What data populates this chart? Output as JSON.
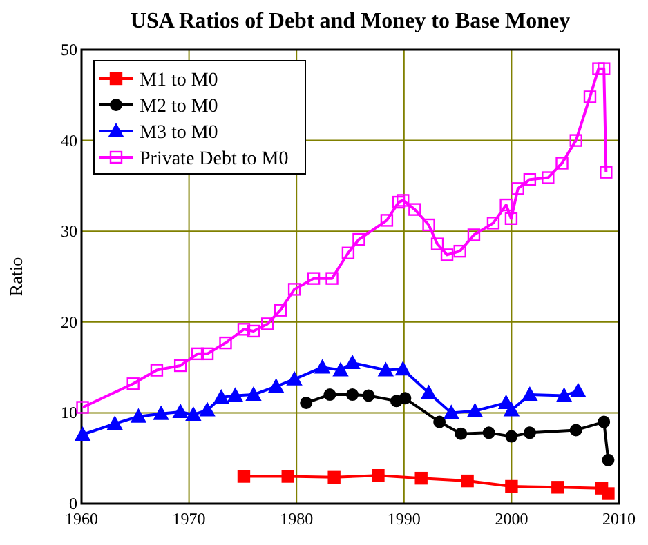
{
  "chart_data": {
    "type": "line",
    "title": "USA Ratios of Debt and Money to Base Money",
    "ylabel": "Ratio",
    "xlim": [
      1960,
      2010
    ],
    "xticks": [
      1960,
      1970,
      1980,
      1990,
      2000,
      2010
    ],
    "ylim": [
      0,
      50
    ],
    "yticks": [
      0,
      10,
      20,
      30,
      40,
      50
    ],
    "grid": true,
    "legend": "top left",
    "series": [
      {
        "name": "M1 to M0",
        "color": "#ff0000",
        "marker": "square",
        "x": [
          1975.1,
          1979.2,
          1983.5,
          1987.6,
          1991.6,
          1995.9,
          2000.0,
          2004.3,
          2008.4,
          2009.0
        ],
        "values": [
          3.0,
          3.0,
          2.9,
          3.1,
          2.8,
          2.5,
          1.9,
          1.8,
          1.7,
          1.1
        ]
      },
      {
        "name": "M2 to M0",
        "color": "#000000",
        "marker": "circle",
        "x": [
          1980.9,
          1983.1,
          1985.2,
          1986.7,
          1989.3,
          1990.1,
          1993.3,
          1995.3,
          1997.9,
          2000.0,
          2001.7,
          2006.0,
          2008.6,
          2009.0
        ],
        "values": [
          11.1,
          12.0,
          12.0,
          11.9,
          11.3,
          11.6,
          9.0,
          7.7,
          7.8,
          7.4,
          7.8,
          8.1,
          9.0,
          4.8
        ]
      },
      {
        "name": "M3 to M0",
        "color": "#0000ff",
        "marker": "triangle",
        "x": [
          1960.1,
          1963.1,
          1965.3,
          1967.4,
          1969.2,
          1970.4,
          1971.7,
          1973.0,
          1974.3,
          1976.0,
          1978.1,
          1979.8,
          1982.4,
          1984.1,
          1985.2,
          1988.3,
          1989.9,
          1992.3,
          1994.4,
          1996.6,
          1999.5,
          2000.0,
          2001.7,
          2004.9,
          2006.2
        ],
        "values": [
          7.6,
          8.8,
          9.6,
          9.9,
          10.1,
          9.8,
          10.3,
          11.7,
          11.9,
          12.0,
          12.9,
          13.7,
          15.0,
          14.7,
          15.5,
          14.7,
          14.8,
          12.2,
          10.0,
          10.2,
          11.1,
          10.3,
          12.0,
          11.9,
          12.4
        ]
      },
      {
        "name": "Private Debt to M0",
        "color": "#ff00ff",
        "marker": "square",
        "x": [
          1960.1,
          1964.8,
          1967.0,
          1969.2,
          1970.8,
          1971.7,
          1973.4,
          1975.1,
          1976.0,
          1977.3,
          1978.5,
          1979.8,
          1981.6,
          1983.3,
          1984.8,
          1985.8,
          1988.4,
          1989.5,
          1989.9,
          1991.0,
          1992.3,
          1993.1,
          1994.0,
          1995.2,
          1996.5,
          1998.3,
          1999.5,
          1999.97,
          2000.6,
          2001.7,
          2003.4,
          2004.7,
          2006.0,
          2007.3,
          2008.1,
          2008.6,
          2008.8
        ],
        "values": [
          10.6,
          13.2,
          14.7,
          15.2,
          16.5,
          16.5,
          17.7,
          19.2,
          19.0,
          19.8,
          21.3,
          23.6,
          24.8,
          24.8,
          27.6,
          29.1,
          31.2,
          33.2,
          33.4,
          32.4,
          30.7,
          28.6,
          27.4,
          27.8,
          29.6,
          30.9,
          32.9,
          31.4,
          34.7,
          35.7,
          35.9,
          37.5,
          40.0,
          44.8,
          47.9,
          47.9,
          36.5
        ]
      }
    ]
  }
}
